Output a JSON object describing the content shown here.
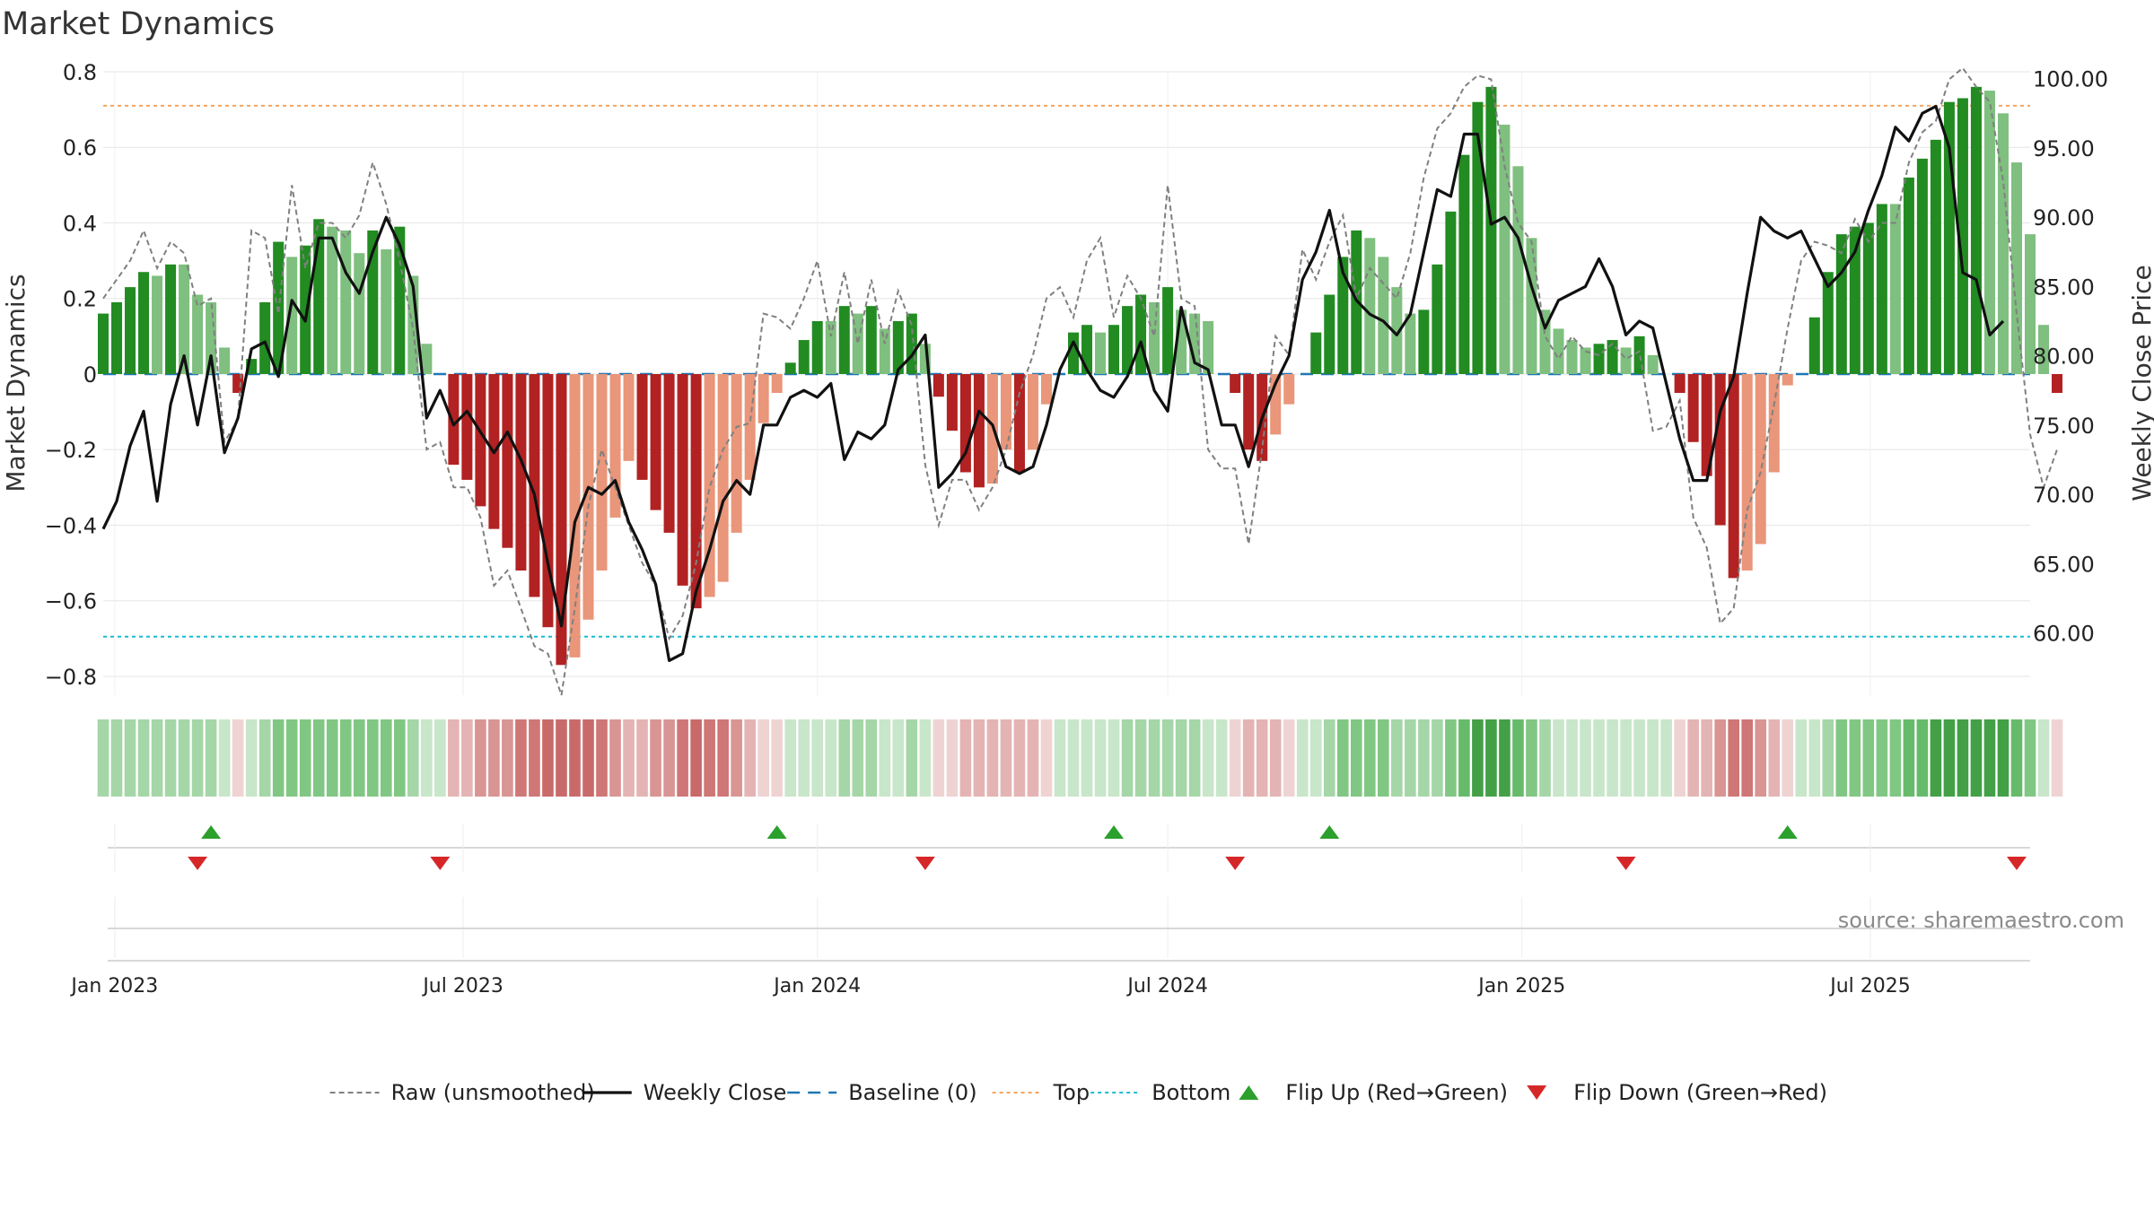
{
  "chart_data": {
    "type": "bar",
    "title": "Market Dynamics",
    "ylabel_left": "Market Dynamics",
    "ylabel_right": "Weekly Close Price",
    "source_note": "source: sharemaestro.com",
    "ylim_left": [
      -0.85,
      0.8
    ],
    "ylim_right": [
      55.5,
      100.5
    ],
    "yticks_left": [
      0.8,
      0.6,
      0.4,
      0.2,
      0,
      -0.2,
      -0.4,
      -0.6,
      -0.8
    ],
    "ytick_labels_left": [
      "0.8",
      "0.6",
      "0.4",
      "0.2",
      "0",
      "−0.2",
      "−0.4",
      "−0.6",
      "−0.8"
    ],
    "yticks_right": [
      100,
      95,
      90,
      85,
      80,
      75,
      70,
      65,
      60
    ],
    "ytick_labels_right": [
      "100.00",
      "95.00",
      "90.00",
      "85.00",
      "80.00",
      "75.00",
      "70.00",
      "65.00",
      "60.00"
    ],
    "x_date_range": [
      "2022-12-26",
      "2025-09-22"
    ],
    "xticks": [
      {
        "date": "2023-01-01",
        "label": "Jan 2023"
      },
      {
        "date": "2023-07-01",
        "label": "Jul 2023"
      },
      {
        "date": "2024-01-01",
        "label": "Jan 2024"
      },
      {
        "date": "2024-07-01",
        "label": "Jul 2024"
      },
      {
        "date": "2025-01-01",
        "label": "Jan 2025"
      },
      {
        "date": "2025-07-01",
        "label": "Jul 2025"
      }
    ],
    "weeks": {
      "start_date": "2022-12-26",
      "interval_days": 7,
      "dynamics": [
        0.16,
        0.19,
        0.23,
        0.27,
        0.26,
        0.29,
        0.29,
        0.21,
        0.19,
        0.07,
        -0.05,
        0.04,
        0.19,
        0.35,
        0.31,
        0.34,
        0.41,
        0.39,
        0.38,
        0.32,
        0.38,
        0.33,
        0.39,
        0.26,
        0.08,
        0.0,
        -0.24,
        -0.28,
        -0.35,
        -0.41,
        -0.46,
        -0.52,
        -0.59,
        -0.67,
        -0.77,
        -0.75,
        -0.65,
        -0.52,
        -0.38,
        -0.23,
        -0.28,
        -0.36,
        -0.42,
        -0.56,
        -0.62,
        -0.59,
        -0.55,
        -0.42,
        -0.28,
        -0.13,
        -0.05,
        0.03,
        0.09,
        0.14,
        0.14,
        0.18,
        0.16,
        0.18,
        0.12,
        0.14,
        0.16,
        0.08,
        -0.06,
        -0.15,
        -0.26,
        -0.3,
        -0.29,
        -0.2,
        -0.26,
        -0.2,
        -0.08,
        0.0,
        0.11,
        0.13,
        0.11,
        0.13,
        0.18,
        0.21,
        0.19,
        0.23,
        0.17,
        0.16,
        0.14,
        0.0,
        -0.05,
        -0.2,
        -0.23,
        -0.16,
        -0.08,
        0.0,
        0.11,
        0.21,
        0.31,
        0.38,
        0.36,
        0.31,
        0.23,
        0.16,
        0.17,
        0.29,
        0.43,
        0.58,
        0.72,
        0.76,
        0.66,
        0.55,
        0.36,
        0.17,
        0.12,
        0.09,
        0.07,
        0.08,
        0.09,
        0.07,
        0.1,
        0.05,
        0.0,
        -0.05,
        -0.18,
        -0.27,
        -0.4,
        -0.54,
        -0.52,
        -0.45,
        -0.26,
        -0.03,
        0.0,
        0.15,
        0.27,
        0.37,
        0.39,
        0.4,
        0.45,
        0.45,
        0.52,
        0.57,
        0.62,
        0.72,
        0.73,
        0.76,
        0.75,
        0.69,
        0.56,
        0.37,
        0.13,
        -0.05
      ],
      "raw": [
        0.2,
        0.25,
        0.3,
        0.38,
        0.28,
        0.35,
        0.32,
        0.18,
        0.2,
        -0.18,
        -0.12,
        0.38,
        0.36,
        0.16,
        0.5,
        0.28,
        0.4,
        0.4,
        0.36,
        0.42,
        0.56,
        0.45,
        0.3,
        0.12,
        -0.2,
        -0.18,
        -0.3,
        -0.3,
        -0.38,
        -0.56,
        -0.52,
        -0.62,
        -0.72,
        -0.74,
        -0.85,
        -0.62,
        -0.35,
        -0.2,
        -0.3,
        -0.4,
        -0.5,
        -0.56,
        -0.7,
        -0.64,
        -0.5,
        -0.3,
        -0.2,
        -0.14,
        -0.13,
        0.16,
        0.15,
        0.12,
        0.2,
        0.3,
        0.1,
        0.27,
        0.08,
        0.25,
        0.08,
        0.22,
        0.13,
        -0.24,
        -0.4,
        -0.28,
        -0.28,
        -0.36,
        -0.3,
        -0.2,
        -0.05,
        0.05,
        0.2,
        0.23,
        0.15,
        0.3,
        0.36,
        0.15,
        0.26,
        0.2,
        0.1,
        0.5,
        0.2,
        0.18,
        -0.2,
        -0.25,
        -0.25,
        -0.45,
        -0.2,
        0.1,
        0.05,
        0.33,
        0.25,
        0.35,
        0.42,
        0.2,
        0.28,
        0.24,
        0.2,
        0.32,
        0.52,
        0.65,
        0.69,
        0.76,
        0.79,
        0.78,
        0.55,
        0.4,
        0.35,
        0.1,
        0.04,
        0.1,
        0.06,
        0.05,
        0.08,
        0.04,
        0.06,
        -0.15,
        -0.14,
        -0.07,
        -0.38,
        -0.46,
        -0.66,
        -0.62,
        -0.36,
        -0.26,
        -0.08,
        0.12,
        0.3,
        0.35,
        0.34,
        0.32,
        0.41,
        0.35,
        0.4,
        0.4,
        0.56,
        0.64,
        0.67,
        0.78,
        0.81,
        0.76,
        0.72,
        0.51,
        0.16,
        -0.16,
        -0.3,
        -0.2
      ],
      "close": [
        67.5,
        69.5,
        73.5,
        76.0,
        69.5,
        76.5,
        80.0,
        75.0,
        80.0,
        73.0,
        75.5,
        80.5,
        81.0,
        78.5,
        84.0,
        82.5,
        88.5,
        88.5,
        86.0,
        84.5,
        87.5,
        90.0,
        88.0,
        85.0,
        75.5,
        77.5,
        75.0,
        76.0,
        74.5,
        73.0,
        74.5,
        72.5,
        70.0,
        65.0,
        60.5,
        68.0,
        70.5,
        70.0,
        71.0,
        68.0,
        66.0,
        63.5,
        58.0,
        58.5,
        63.0,
        66.0,
        69.5,
        71.0,
        70.0,
        75.0,
        75.0,
        77.0,
        77.5,
        77.0,
        78.0,
        72.5,
        74.5,
        74.0,
        75.0,
        79.0,
        80.0,
        81.5,
        70.5,
        71.5,
        73.0,
        76.0,
        75.0,
        72.0,
        71.5,
        72.0,
        75.0,
        79.0,
        81.0,
        79.0,
        77.5,
        77.0,
        78.5,
        81.0,
        77.5,
        76.0,
        83.5,
        79.5,
        79.0,
        75.0,
        75.0,
        72.0,
        75.5,
        78.0,
        80.0,
        85.5,
        87.5,
        90.5,
        86.0,
        84.0,
        83.0,
        82.5,
        81.5,
        83.0,
        87.5,
        92.0,
        91.5,
        96.0,
        96.0,
        89.5,
        90.0,
        88.5,
        85.0,
        82.0,
        84.0,
        84.5,
        85.0,
        87.0,
        85.0,
        81.5,
        82.5,
        82.0,
        78.0,
        74.0,
        71.0,
        71.0,
        76.0,
        78.5,
        84.5,
        90.0,
        89.0,
        88.5,
        89.0,
        87.0,
        85.0,
        86.0,
        87.5,
        90.5,
        93.0,
        96.5,
        95.5,
        97.5,
        98.0,
        95.0,
        86.0,
        85.5,
        81.5,
        82.5
      ]
    },
    "color_strip": {
      "pos_levels": [
        "#c8e6c9",
        "#a5d6a7",
        "#81c784",
        "#66bb6a",
        "#43a047"
      ],
      "neg_levels": [
        "#efd3d3",
        "#e4b4b4",
        "#d99494",
        "#cf7676",
        "#c96a6a"
      ]
    },
    "flip_up_dates": [
      "2023-02-20",
      "2023-12-11",
      "2024-06-03",
      "2024-09-23",
      "2025-05-19"
    ],
    "flip_down_dates": [
      "2023-02-13",
      "2023-06-19",
      "2024-02-26",
      "2024-08-05",
      "2025-02-24",
      "2025-09-15"
    ],
    "reference_lines": {
      "top": 0.71,
      "bottom": -0.695,
      "baseline": 0
    },
    "legend_placement": "bottom-center",
    "legend": [
      {
        "label": "Raw (unsmoothed)",
        "style": "dashed-gray"
      },
      {
        "label": "Weekly Close",
        "style": "solid-black"
      },
      {
        "label": "Baseline (0)",
        "style": "dashed-blue"
      },
      {
        "label": "Top",
        "style": "dotted-orange"
      },
      {
        "label": "Bottom",
        "style": "dotted-cyan"
      },
      {
        "label": "Flip Up (Red→Green)",
        "style": "triangle-up-green"
      },
      {
        "label": "Flip Down (Green→Red)",
        "style": "triangle-down-red"
      }
    ],
    "colors": {
      "pos_dark": "#228b22",
      "pos_light": "#7fbf7f",
      "neg_dark": "#b22222",
      "neg_light": "#e9967a",
      "raw_line": "#808080",
      "close_line": "#111111",
      "baseline": "#1f77b4",
      "top": "#f4a460",
      "bottom": "#17becf",
      "flip_up": "#2ca02c",
      "flip_down": "#d62728",
      "grid": "#e6e6e6",
      "text": "#222222",
      "source_text": "#8a8a8a"
    }
  }
}
